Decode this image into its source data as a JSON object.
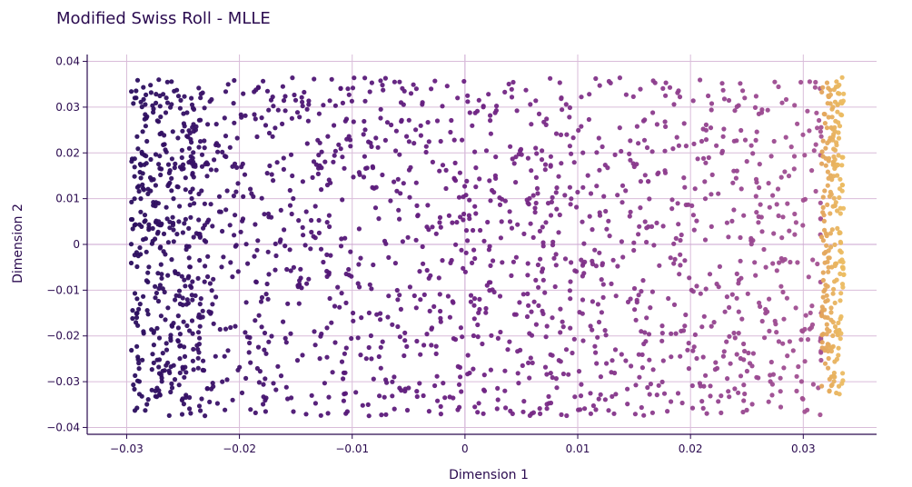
{
  "chart_data": {
    "type": "scatter",
    "title": "Modified Swiss Roll - MLLE",
    "xlabel": "Dimension 1",
    "ylabel": "Dimension 2",
    "xlim": [
      -0.0335,
      0.0365
    ],
    "ylim": [
      -0.0415,
      0.0415
    ],
    "x_ticks": [
      -0.03,
      -0.02,
      -0.01,
      0,
      0.01,
      0.02,
      0.03
    ],
    "x_tick_labels": [
      "−0.03",
      "−0.02",
      "−0.01",
      "0",
      "0.01",
      "0.02",
      "0.03"
    ],
    "y_ticks": [
      0.04,
      0.03,
      0.02,
      0.01,
      0,
      -0.01,
      -0.02,
      -0.03,
      -0.04
    ],
    "y_tick_labels": [
      "0.04",
      "0.03",
      "0.02",
      "0.01",
      "0",
      "−0.01",
      "−0.02",
      "−0.03",
      "−0.04"
    ],
    "grid": true,
    "legend": "none",
    "colorscale": [
      "#2a0e5e",
      "#4d1574",
      "#6e2283",
      "#8a3a8c",
      "#a35192",
      "#e2a15a",
      "#ecbd62"
    ],
    "point_count": 2100,
    "x_distribution": {
      "uniform_band": [
        -0.0296,
        0.0315
      ],
      "dense_left_band": [
        -0.0296,
        -0.0228
      ],
      "bright_right_band": [
        0.0315,
        0.0336
      ]
    },
    "y_distribution": {
      "range": [
        -0.0375,
        0.0365
      ]
    }
  }
}
